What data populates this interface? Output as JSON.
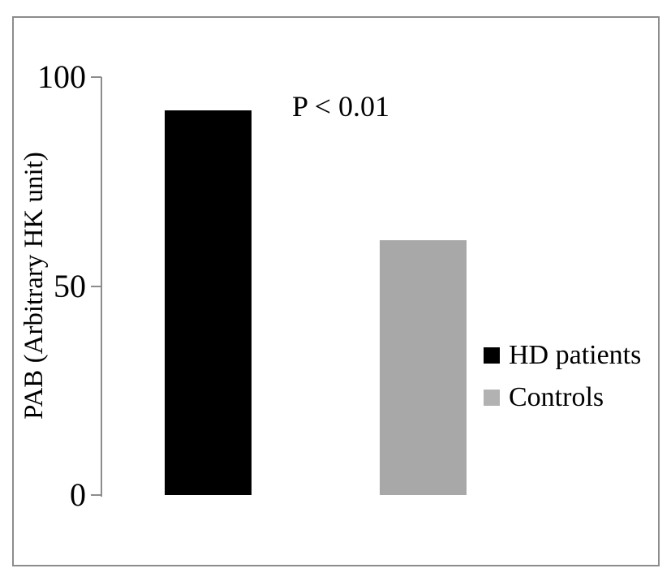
{
  "chart_data": {
    "type": "bar",
    "categories": [
      "HD patients",
      "Controls"
    ],
    "values": [
      92,
      61
    ],
    "bar_colors": [
      "#000000",
      "#a8a8a8"
    ],
    "title": "",
    "xlabel": "",
    "ylabel": "PAB (Arbitrary HK unit)",
    "ylim": [
      0,
      100
    ],
    "yticks": [
      0,
      50,
      100
    ],
    "grid": false,
    "annotation": "P < 0.01",
    "legend": {
      "position": "right",
      "entries": [
        {
          "label": "HD patients",
          "color": "#000000"
        },
        {
          "label": "Controls",
          "color": "#b2b2b2"
        }
      ]
    },
    "colors": {
      "axis": "#8c8c8c",
      "frame_border": "#8c8c8c",
      "text": "#000000",
      "background": "#ffffff"
    }
  }
}
